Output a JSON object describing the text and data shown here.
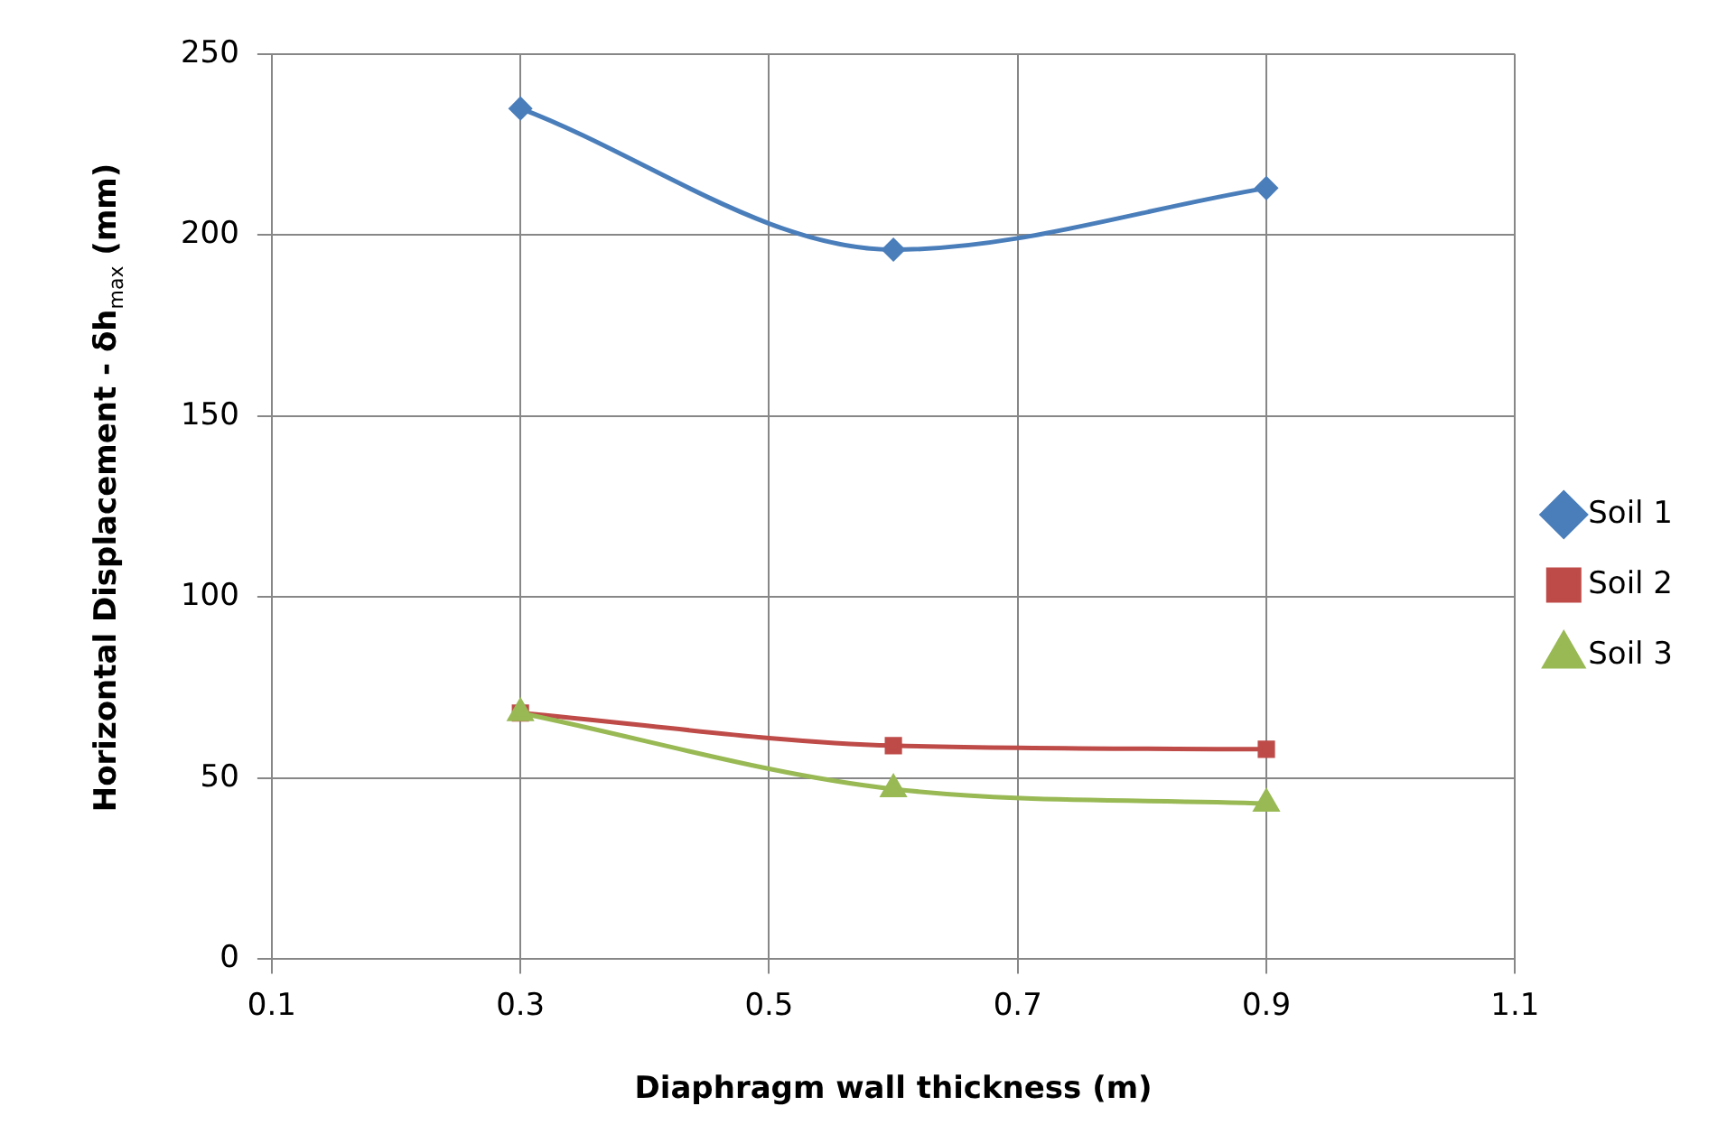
{
  "chart_data": {
    "type": "line",
    "xlabel": "Diaphragm wall thickness (m)",
    "ylabel": "Horizontal Displacement - δh$_{max}$ (mm)",
    "x": [
      0.3,
      0.6,
      0.9
    ],
    "series": [
      {
        "name": "Soil 1",
        "color": "#4a7ebb",
        "marker": "diamond",
        "values": [
          235,
          196,
          213
        ]
      },
      {
        "name": "Soil 2",
        "color": "#be4b48",
        "marker": "square",
        "values": [
          68,
          59,
          58
        ]
      },
      {
        "name": "Soil 3",
        "color": "#98b954",
        "marker": "triangle",
        "values": [
          68,
          47,
          43
        ]
      }
    ],
    "xlim": [
      0.1,
      1.1
    ],
    "xticks": [
      0.1,
      0.3,
      0.5,
      0.7,
      0.9,
      1.1
    ],
    "ylim": [
      0,
      250
    ],
    "yticks": [
      0,
      50,
      100,
      150,
      200,
      250
    ],
    "grid": true,
    "legend": "right",
    "line_style": "solid"
  }
}
